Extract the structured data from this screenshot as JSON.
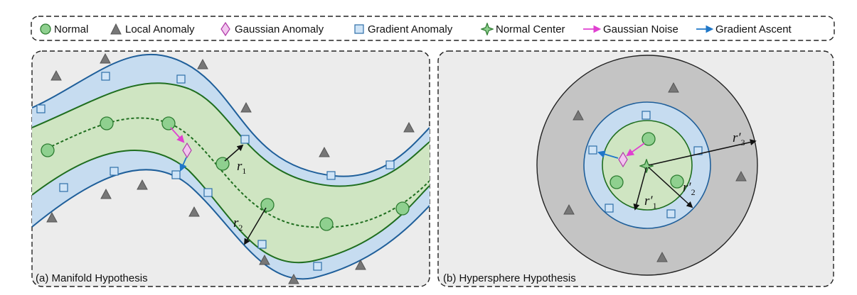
{
  "legend": [
    {
      "key": "normal",
      "label": "Normal",
      "icon": "circle-icon"
    },
    {
      "key": "local",
      "label": "Local Anomaly",
      "icon": "triangle-icon"
    },
    {
      "key": "gaussian",
      "label": "Gaussian Anomaly",
      "icon": "diamond-icon"
    },
    {
      "key": "gradient",
      "label": "Gradient Anomaly",
      "icon": "square-icon"
    },
    {
      "key": "center",
      "label": "Normal Center",
      "icon": "star-icon"
    },
    {
      "key": "gnoise",
      "label": "Gaussian Noise",
      "icon": "magenta-arrow-icon"
    },
    {
      "key": "gascent",
      "label": "Gradient Ascent",
      "icon": "blue-arrow-icon"
    }
  ],
  "panel_a": {
    "caption": "(a) Manifold Hypothesis",
    "r1": {
      "letter": "r",
      "sub": "1"
    },
    "r2": {
      "letter": "r",
      "sub": "2"
    }
  },
  "panel_b": {
    "caption": "(b) Hypersphere Hypothesis",
    "r1": {
      "letter": "r′",
      "sub": "1"
    },
    "r2": {
      "letter": "r′",
      "sub": "2"
    },
    "r3": {
      "letter": "r′",
      "sub": "3"
    }
  },
  "colors": {
    "normal_fill": "#8fd08f",
    "normal_stroke": "#2e7d32",
    "green_band": "#cfe5c2",
    "green_line": "#1f6e1f",
    "blue_band": "#c6dcf0",
    "blue_line": "#1f5f9a",
    "triangle": "#777777",
    "square_fill": "#cfe4f7",
    "square_stroke": "#2f6fa8",
    "diamond_fill": "#f2c6ef",
    "diamond_stroke": "#b03aa8",
    "magenta_arrow": "#e040d0",
    "blue_arrow": "#1f77c8",
    "panel_bg": "#ececec",
    "outer_disk": "#c4c4c4"
  }
}
